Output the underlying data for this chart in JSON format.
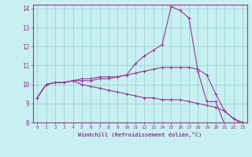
{
  "xlabel": "Windchill (Refroidissement éolien,°C)",
  "bg_color": "#c8f0f0",
  "grid_color": "#a0d8d8",
  "line_color": "#993399",
  "spine_color": "#993399",
  "xlim": [
    -0.5,
    23.5
  ],
  "ylim": [
    8,
    14.2
  ],
  "yticks": [
    8,
    9,
    10,
    11,
    12,
    13,
    14
  ],
  "xticks": [
    0,
    1,
    2,
    3,
    4,
    5,
    6,
    7,
    8,
    9,
    10,
    11,
    12,
    13,
    14,
    15,
    16,
    17,
    18,
    19,
    20,
    21,
    22,
    23
  ],
  "curves": [
    [
      9.3,
      10.0,
      10.1,
      10.1,
      10.2,
      10.2,
      10.2,
      10.3,
      10.3,
      10.4,
      10.5,
      11.1,
      11.5,
      11.8,
      12.1,
      14.1,
      13.9,
      13.5,
      10.7,
      9.1,
      9.1,
      7.9,
      7.8,
      7.7
    ],
    [
      9.3,
      10.0,
      10.1,
      10.1,
      10.2,
      10.3,
      10.3,
      10.4,
      10.4,
      10.4,
      10.5,
      10.6,
      10.7,
      10.8,
      10.9,
      10.9,
      10.9,
      10.9,
      10.8,
      10.5,
      9.5,
      8.6,
      8.2,
      8.0
    ],
    [
      9.3,
      10.0,
      10.1,
      10.1,
      10.2,
      10.0,
      9.9,
      9.8,
      9.7,
      9.6,
      9.5,
      9.4,
      9.3,
      9.3,
      9.2,
      9.2,
      9.2,
      9.1,
      9.0,
      8.9,
      8.8,
      8.6,
      8.2,
      7.9
    ]
  ]
}
